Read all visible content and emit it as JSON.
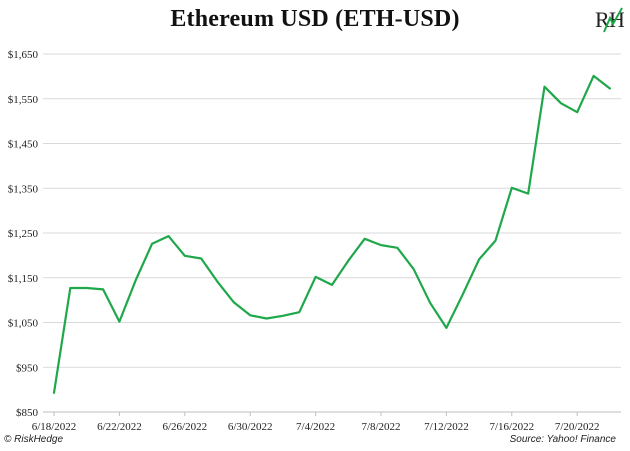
{
  "chart_data": {
    "type": "line",
    "title": "Ethereum USD (ETH-USD)",
    "xlabel": "",
    "ylabel": "",
    "ylim": [
      850,
      1650
    ],
    "y_ticks": [
      "$850",
      "$950",
      "$1,050",
      "$1,150",
      "$1,250",
      "$1,350",
      "$1,450",
      "$1,550",
      "$1,650"
    ],
    "y_tick_values": [
      850,
      950,
      1050,
      1150,
      1250,
      1350,
      1450,
      1550,
      1650
    ],
    "x_ticks": [
      "6/18/2022",
      "6/22/2022",
      "6/26/2022",
      "6/30/2022",
      "7/4/2022",
      "7/8/2022",
      "7/12/2022",
      "7/16/2022",
      "7/20/2022"
    ],
    "grid": "horizontal",
    "series": [
      {
        "color": "#1fa84a",
        "values": [
          893,
          1127,
          1127,
          1124,
          1052,
          1145,
          1226,
          1243,
          1199,
          1193,
          1141,
          1095,
          1066,
          1059,
          1065,
          1073,
          1152,
          1134,
          1188,
          1237,
          1223,
          1217,
          1169,
          1094,
          1038,
          1113,
          1191,
          1233,
          1351,
          1338,
          1577,
          1540,
          1520,
          1601,
          1573
        ]
      }
    ]
  },
  "credit": "© RiskHedge",
  "source": "Source: Yahoo! Finance",
  "logo": {
    "text": "RH",
    "colors": {
      "letters": "#222222",
      "accent": "#1fa84a"
    }
  }
}
